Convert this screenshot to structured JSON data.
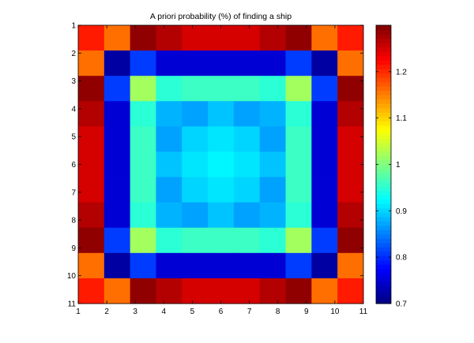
{
  "chart_data": {
    "type": "heatmap",
    "title": "A priori probability (%) of finding a ship",
    "xlabel": "",
    "ylabel": "",
    "x_ticks": [
      "1",
      "2",
      "3",
      "4",
      "5",
      "6",
      "7",
      "8",
      "9",
      "10",
      "11"
    ],
    "y_ticks": [
      "1",
      "2",
      "3",
      "4",
      "5",
      "6",
      "7",
      "8",
      "9",
      "10",
      "11"
    ],
    "xlim": [
      1,
      11
    ],
    "ylim": [
      1,
      11
    ],
    "y_direction": "top-to-bottom",
    "colormap": "jet",
    "clim": [
      0.7,
      1.3
    ],
    "colorbar": {
      "location": "right",
      "ticks": [
        "0.7",
        "0.8",
        "0.9",
        "1",
        "1.1",
        "1.2"
      ],
      "tick_values": [
        0.7,
        0.8,
        0.9,
        1.0,
        1.1,
        1.2
      ]
    },
    "grid": false,
    "values": [
      [
        1.21,
        1.16,
        1.29,
        1.27,
        1.25,
        1.25,
        1.25,
        1.27,
        1.29,
        1.16,
        1.21
      ],
      [
        1.16,
        0.72,
        0.81,
        0.75,
        0.75,
        0.75,
        0.75,
        0.75,
        0.81,
        0.72,
        1.16
      ],
      [
        1.29,
        0.81,
        1.02,
        0.95,
        0.96,
        0.96,
        0.96,
        0.95,
        1.02,
        0.81,
        1.29
      ],
      [
        1.27,
        0.75,
        0.95,
        0.88,
        0.87,
        0.89,
        0.87,
        0.88,
        0.95,
        0.75,
        1.27
      ],
      [
        1.25,
        0.75,
        0.96,
        0.87,
        0.9,
        0.91,
        0.9,
        0.87,
        0.96,
        0.75,
        1.25
      ],
      [
        1.25,
        0.75,
        0.96,
        0.89,
        0.91,
        0.92,
        0.91,
        0.89,
        0.96,
        0.75,
        1.25
      ],
      [
        1.25,
        0.75,
        0.96,
        0.87,
        0.9,
        0.91,
        0.9,
        0.87,
        0.96,
        0.75,
        1.25
      ],
      [
        1.27,
        0.75,
        0.95,
        0.88,
        0.87,
        0.89,
        0.87,
        0.88,
        0.95,
        0.75,
        1.27
      ],
      [
        1.29,
        0.81,
        1.02,
        0.95,
        0.96,
        0.96,
        0.96,
        0.95,
        1.02,
        0.81,
        1.29
      ],
      [
        1.16,
        0.72,
        0.81,
        0.75,
        0.75,
        0.75,
        0.75,
        0.75,
        0.81,
        0.72,
        1.16
      ],
      [
        1.21,
        1.16,
        1.29,
        1.27,
        1.25,
        1.25,
        1.25,
        1.27,
        1.29,
        1.16,
        1.21
      ]
    ]
  }
}
